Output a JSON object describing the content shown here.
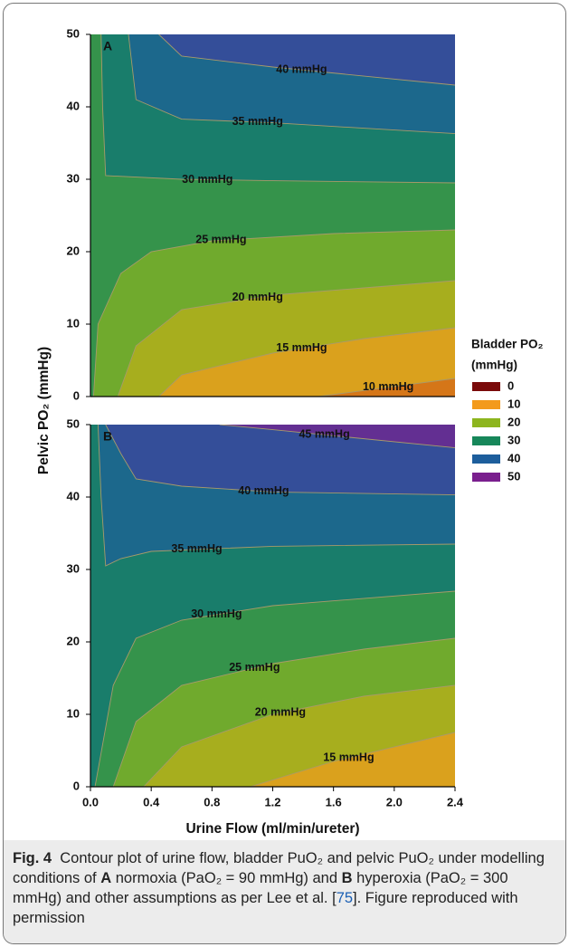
{
  "chart_data": [
    {
      "type": "contour",
      "panel_label": "A",
      "ylabel": "Pelvic PO₂ (mmHg)",
      "xlim": [
        0,
        2.4
      ],
      "ylim": [
        0,
        50
      ],
      "yticks": [
        0,
        10,
        20,
        30,
        40,
        50
      ],
      "colorbar": {
        "title": [
          "Bladder PO₂",
          "(mmHg)"
        ],
        "items": [
          {
            "value": 0,
            "color": "#7a0a0a"
          },
          {
            "value": 10,
            "color": "#f39a1c"
          },
          {
            "value": 20,
            "color": "#8db51e"
          },
          {
            "value": 30,
            "color": "#17875a"
          },
          {
            "value": 40,
            "color": "#1d5e9c"
          },
          {
            "value": 50,
            "color": "#7a1f8e"
          }
        ]
      },
      "contours": [
        {
          "level": 10,
          "label": "10 mmHg",
          "x": [
            1.5,
            2.4
          ],
          "y": [
            0,
            2.5
          ]
        },
        {
          "level": 15,
          "label": "15 mmHg",
          "x": [
            0.45,
            0.6,
            1.2,
            1.8,
            2.4
          ],
          "y": [
            0,
            3,
            6,
            8,
            9.5
          ]
        },
        {
          "level": 20,
          "label": "20 mmHg",
          "x": [
            0.18,
            0.3,
            0.6,
            1.2,
            1.8,
            2.4
          ],
          "y": [
            0,
            7,
            12,
            14,
            15,
            16
          ]
        },
        {
          "level": 25,
          "label": "25 mmHg",
          "x": [
            0.02,
            0.05,
            0.2,
            0.4,
            0.8,
            1.6,
            2.4
          ],
          "y": [
            0,
            10,
            17,
            20,
            21.5,
            22.5,
            23
          ]
        },
        {
          "level": 30,
          "label": "30 mmHg",
          "x": [
            0.07,
            0.08,
            0.1,
            0.6,
            1.2,
            2.4
          ],
          "y": [
            50,
            40,
            30.5,
            30,
            29.8,
            29.5
          ]
        },
        {
          "level": 35,
          "label": "35 mmHg",
          "x": [
            0.25,
            0.3,
            0.6,
            1.2,
            2.4
          ],
          "y": [
            50,
            41,
            38.3,
            37.8,
            36.3
          ]
        },
        {
          "level": 40,
          "label": "40 mmHg",
          "x": [
            0.45,
            0.6,
            1.2,
            2.4
          ],
          "y": [
            50,
            47,
            45.5,
            43
          ]
        }
      ]
    },
    {
      "type": "contour",
      "panel_label": "B",
      "xlabel": "Urine Flow (ml/min/ureter)",
      "xlim": [
        0,
        2.4
      ],
      "ylim": [
        0,
        50
      ],
      "xticks": [
        {
          "value": 0,
          "label": "0.0"
        },
        0.4,
        0.8,
        1.2,
        1.6,
        {
          "value": 2,
          "label": "2.0"
        },
        2.4
      ],
      "yticks": [
        0,
        10,
        20,
        30,
        40,
        50
      ],
      "contours": [
        {
          "level": 15,
          "label": "15 mmHg",
          "x": [
            1.05,
            1.6,
            2.4
          ],
          "y": [
            0,
            3.5,
            7.5
          ]
        },
        {
          "level": 20,
          "label": "20 mmHg",
          "x": [
            0.35,
            0.6,
            1.2,
            1.8,
            2.4
          ],
          "y": [
            0,
            5.5,
            10,
            12.5,
            14
          ]
        },
        {
          "level": 25,
          "label": "25 mmHg",
          "x": [
            0.15,
            0.3,
            0.6,
            1.2,
            1.8,
            2.4
          ],
          "y": [
            0,
            9,
            14,
            17,
            19,
            20.5
          ]
        },
        {
          "level": 30,
          "label": "30 mmHg",
          "x": [
            0.03,
            0.15,
            0.3,
            0.6,
            1.2,
            2.4
          ],
          "y": [
            0,
            14,
            20.5,
            23,
            25,
            27
          ]
        },
        {
          "level": 35,
          "label": "35 mmHg",
          "x": [
            0.05,
            0.07,
            0.1,
            0.2,
            0.4,
            1.2,
            2.4
          ],
          "y": [
            50,
            40,
            30.5,
            31.5,
            32.5,
            33.2,
            33.5
          ]
        },
        {
          "level": 40,
          "label": "40 mmHg",
          "x": [
            0.1,
            0.2,
            0.3,
            0.6,
            1.2,
            2.4
          ],
          "y": [
            50,
            46,
            42.5,
            41.5,
            40.7,
            40.3
          ]
        },
        {
          "level": 45,
          "label": "45 mmHg",
          "x": [
            0.85,
            1.2,
            2.4
          ],
          "y": [
            50,
            49.3,
            46.8
          ]
        }
      ]
    }
  ],
  "caption": {
    "label": "Fig. 4",
    "segments": [
      "Contour plot of urine flow, bladder PuO₂ and pelvic PuO₂ under modelling conditions of ",
      "A",
      " normoxia (PaO₂ = 90 mmHg) and ",
      "B",
      " hyperoxia (PaO₂ = 300 mmHg) and other assumptions as per Lee et al. [",
      "75",
      "]. Figure reproduced with permission"
    ]
  }
}
